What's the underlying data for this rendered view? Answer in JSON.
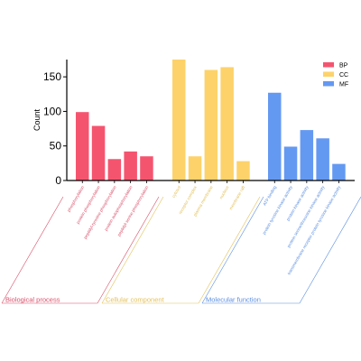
{
  "chart_data": {
    "type": "bar",
    "ylabel": "Count",
    "xlabel": "",
    "ylim": [
      0,
      175
    ],
    "yticks": [
      0,
      50,
      100,
      150
    ],
    "grid": false,
    "legend_position": "top-right",
    "legend": [
      {
        "key": "BP",
        "color": "#f5546f"
      },
      {
        "key": "CC",
        "color": "#fdd26a"
      },
      {
        "key": "MF",
        "color": "#6499f2"
      }
    ],
    "groups": [
      {
        "key": "BP",
        "name": "Biological process",
        "color": "#f5546f",
        "label_color": "#d94f68",
        "categories": [
          "phosphorylation",
          "protein phosphorylation",
          "peptidyl-tyrosine phosphorylation",
          "protein autophosphorylation",
          "peptidyl-serine phosphorylation"
        ],
        "values": [
          99,
          79,
          31,
          42,
          35
        ]
      },
      {
        "key": "CC",
        "name": "Cellular component",
        "color": "#fdd26a",
        "label_color": "#e3c15a",
        "categories": [
          "cytosol",
          "receptor complex",
          "plasma membrane",
          "nucleus",
          "membrane raft"
        ],
        "values": [
          175,
          35,
          160,
          164,
          28
        ]
      },
      {
        "key": "MF",
        "name": "Molecular function",
        "color": "#6499f2",
        "label_color": "#5b8ee0",
        "categories": [
          "ATP binding",
          "protein tyrosine kinase activity",
          "protein kinase activity",
          "protein serine/threonine kinase activity",
          "transmembrane receptor protein tyrosine kinase activity"
        ],
        "values": [
          127,
          49,
          73,
          61,
          24
        ]
      }
    ]
  }
}
